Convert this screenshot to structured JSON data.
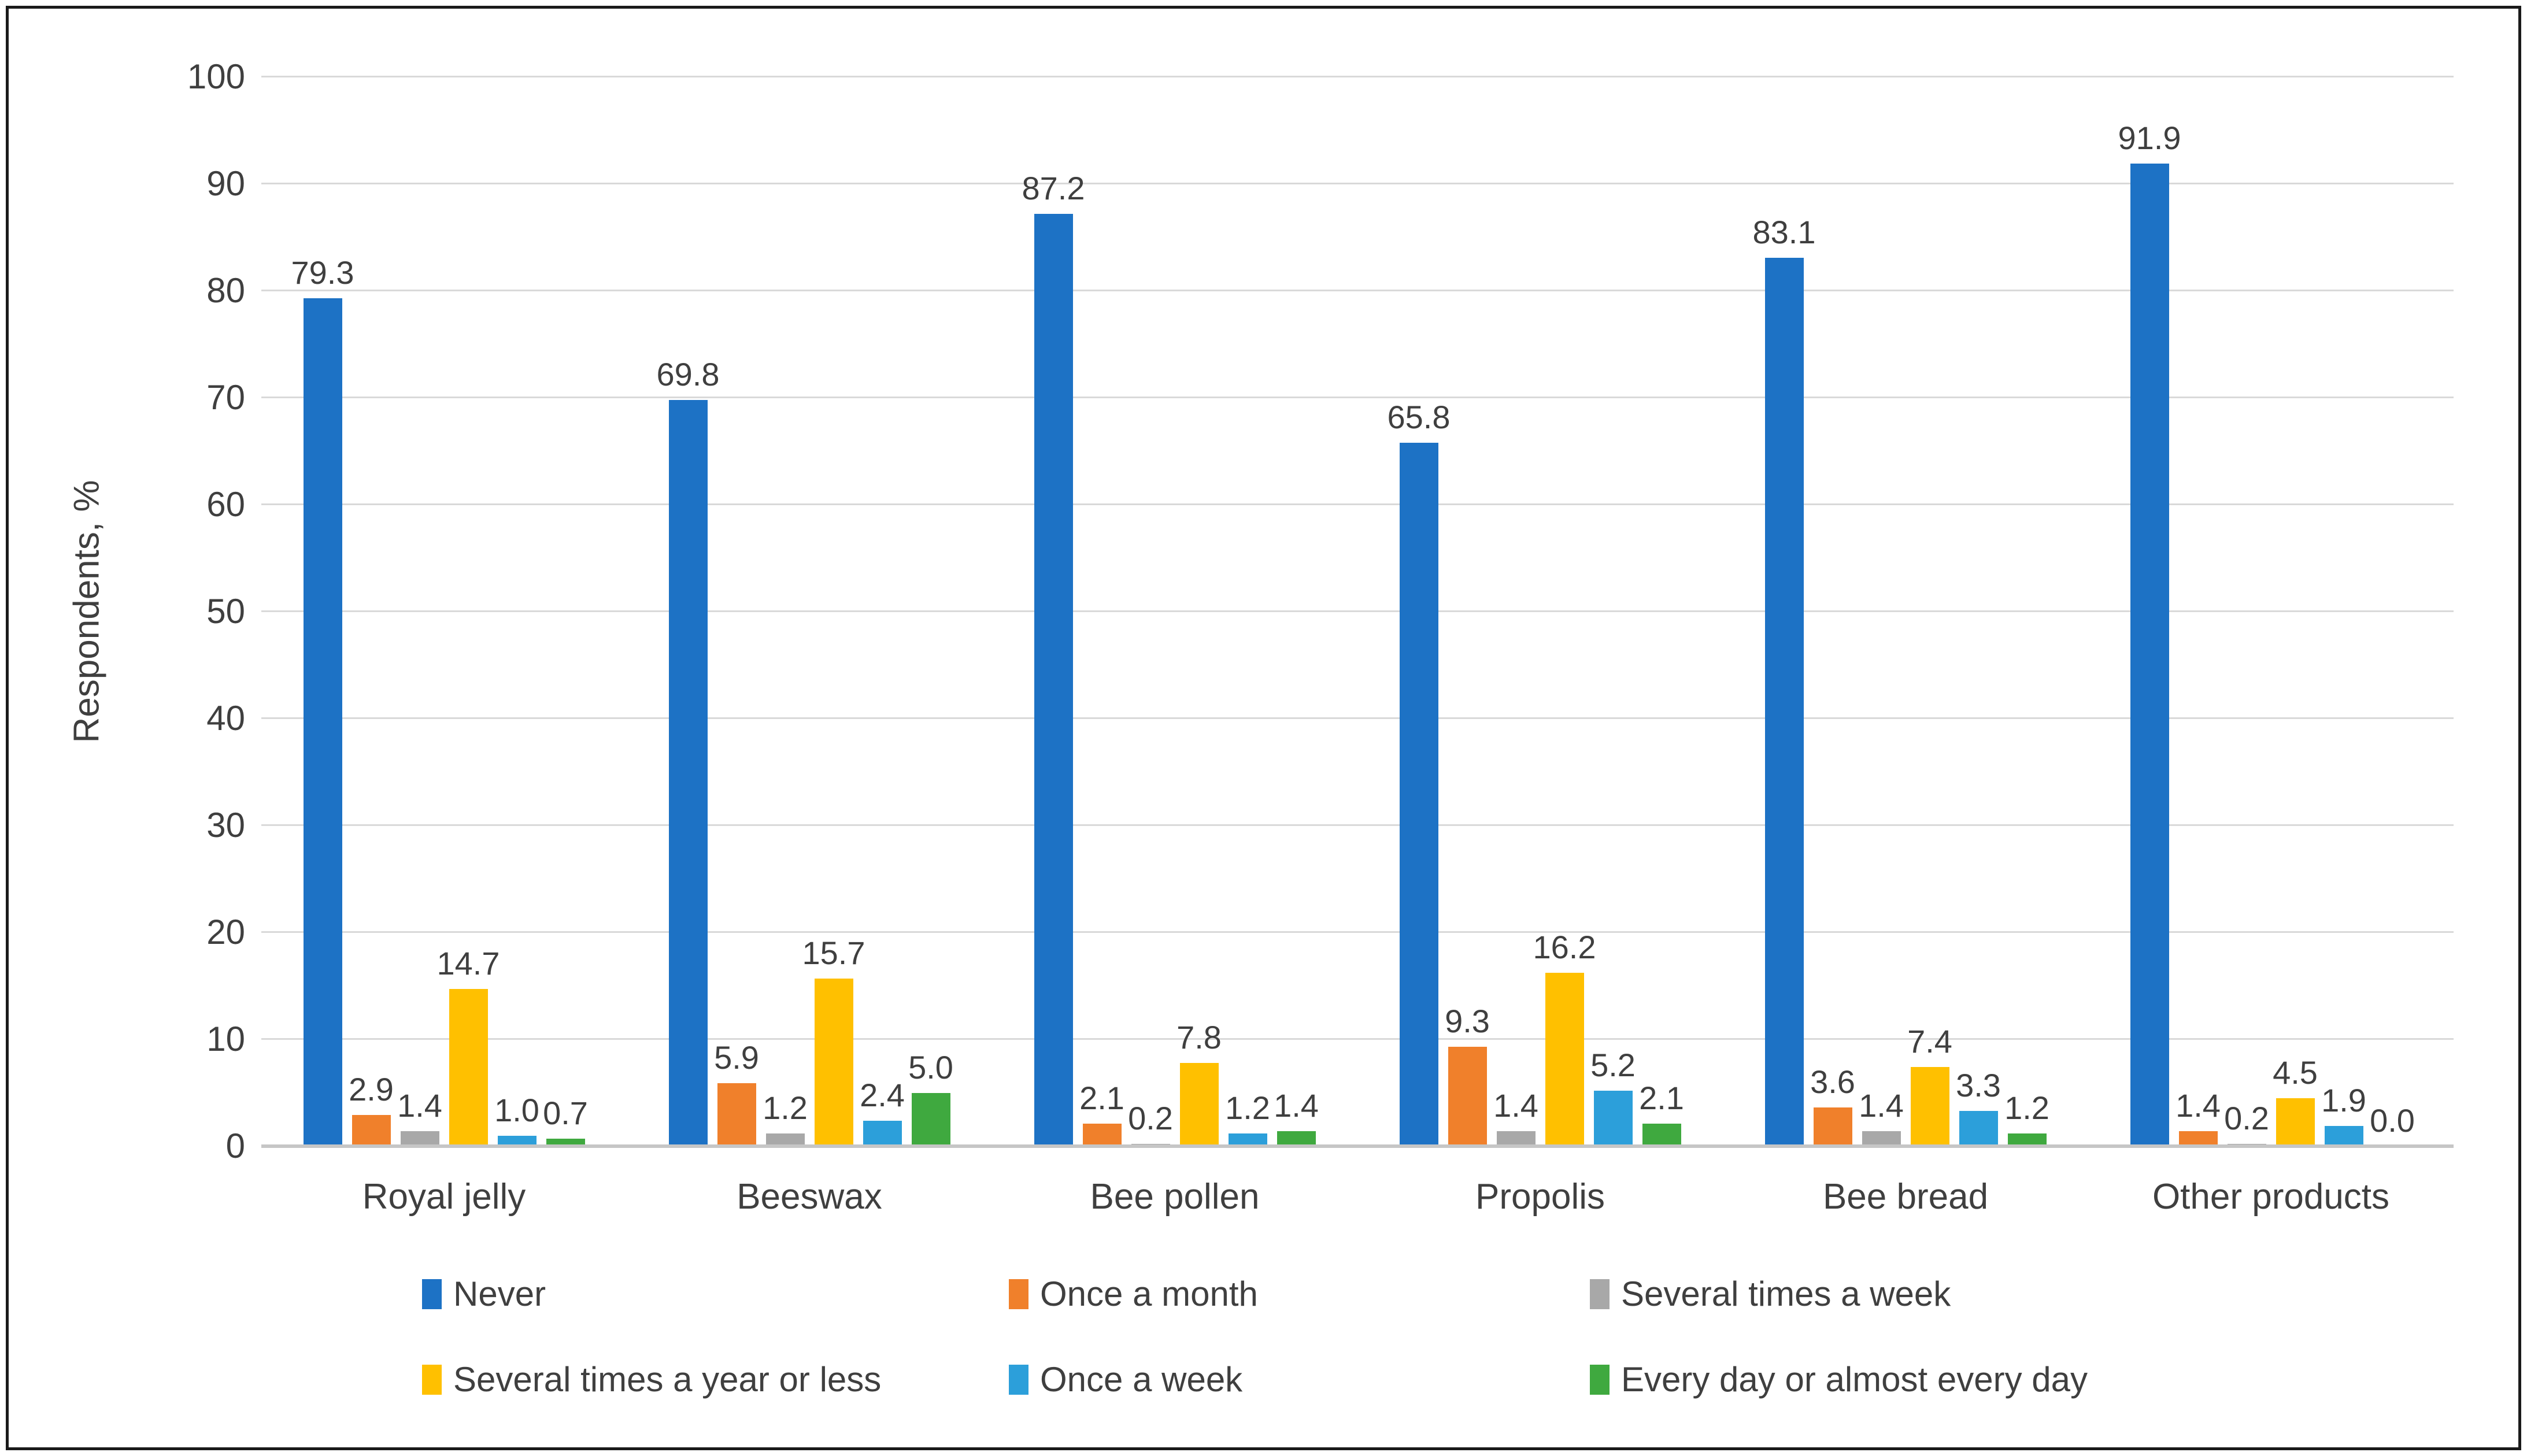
{
  "chart_data": {
    "type": "bar",
    "title": "",
    "xlabel": "",
    "ylabel": "Respondents, %",
    "ylim": [
      0,
      100
    ],
    "yticks": [
      0,
      10,
      20,
      30,
      40,
      50,
      60,
      70,
      80,
      90,
      100
    ],
    "grid": true,
    "legend_position": "bottom",
    "value_label_decimals": 1,
    "categories": [
      "Royal jelly",
      "Beeswax",
      "Bee pollen",
      "Propolis",
      "Bee bread",
      "Other products"
    ],
    "series": [
      {
        "name": "Never",
        "color": "#1D72C5",
        "values": [
          79.3,
          69.8,
          87.2,
          65.8,
          83.1,
          91.9
        ]
      },
      {
        "name": "Once a month",
        "color": "#F0802B",
        "values": [
          2.9,
          5.9,
          2.1,
          9.3,
          3.6,
          1.4
        ]
      },
      {
        "name": "Several times a week",
        "color": "#A8A8A8",
        "values": [
          1.4,
          1.2,
          0.2,
          1.4,
          1.4,
          0.2
        ]
      },
      {
        "name": "Several times a year or less",
        "color": "#FFC000",
        "values": [
          14.7,
          15.7,
          7.8,
          16.2,
          7.4,
          4.5
        ]
      },
      {
        "name": "Once a week",
        "color": "#2C9FDA",
        "values": [
          1.0,
          2.4,
          1.2,
          5.2,
          3.3,
          1.9
        ]
      },
      {
        "name": "Every day or almost every day",
        "color": "#3FA93F",
        "values": [
          0.7,
          5.0,
          1.4,
          2.1,
          1.2,
          0.0
        ]
      }
    ],
    "legend_rows": [
      [
        0,
        1,
        2
      ],
      [
        3,
        4,
        5
      ]
    ]
  },
  "style": {
    "grid_color": "#D9D9D9",
    "axis_line_color": "#C6C6C6",
    "text_color": "#3F3F3F",
    "frame_color": "#1A1A1A",
    "background": "#FFFFFF"
  }
}
